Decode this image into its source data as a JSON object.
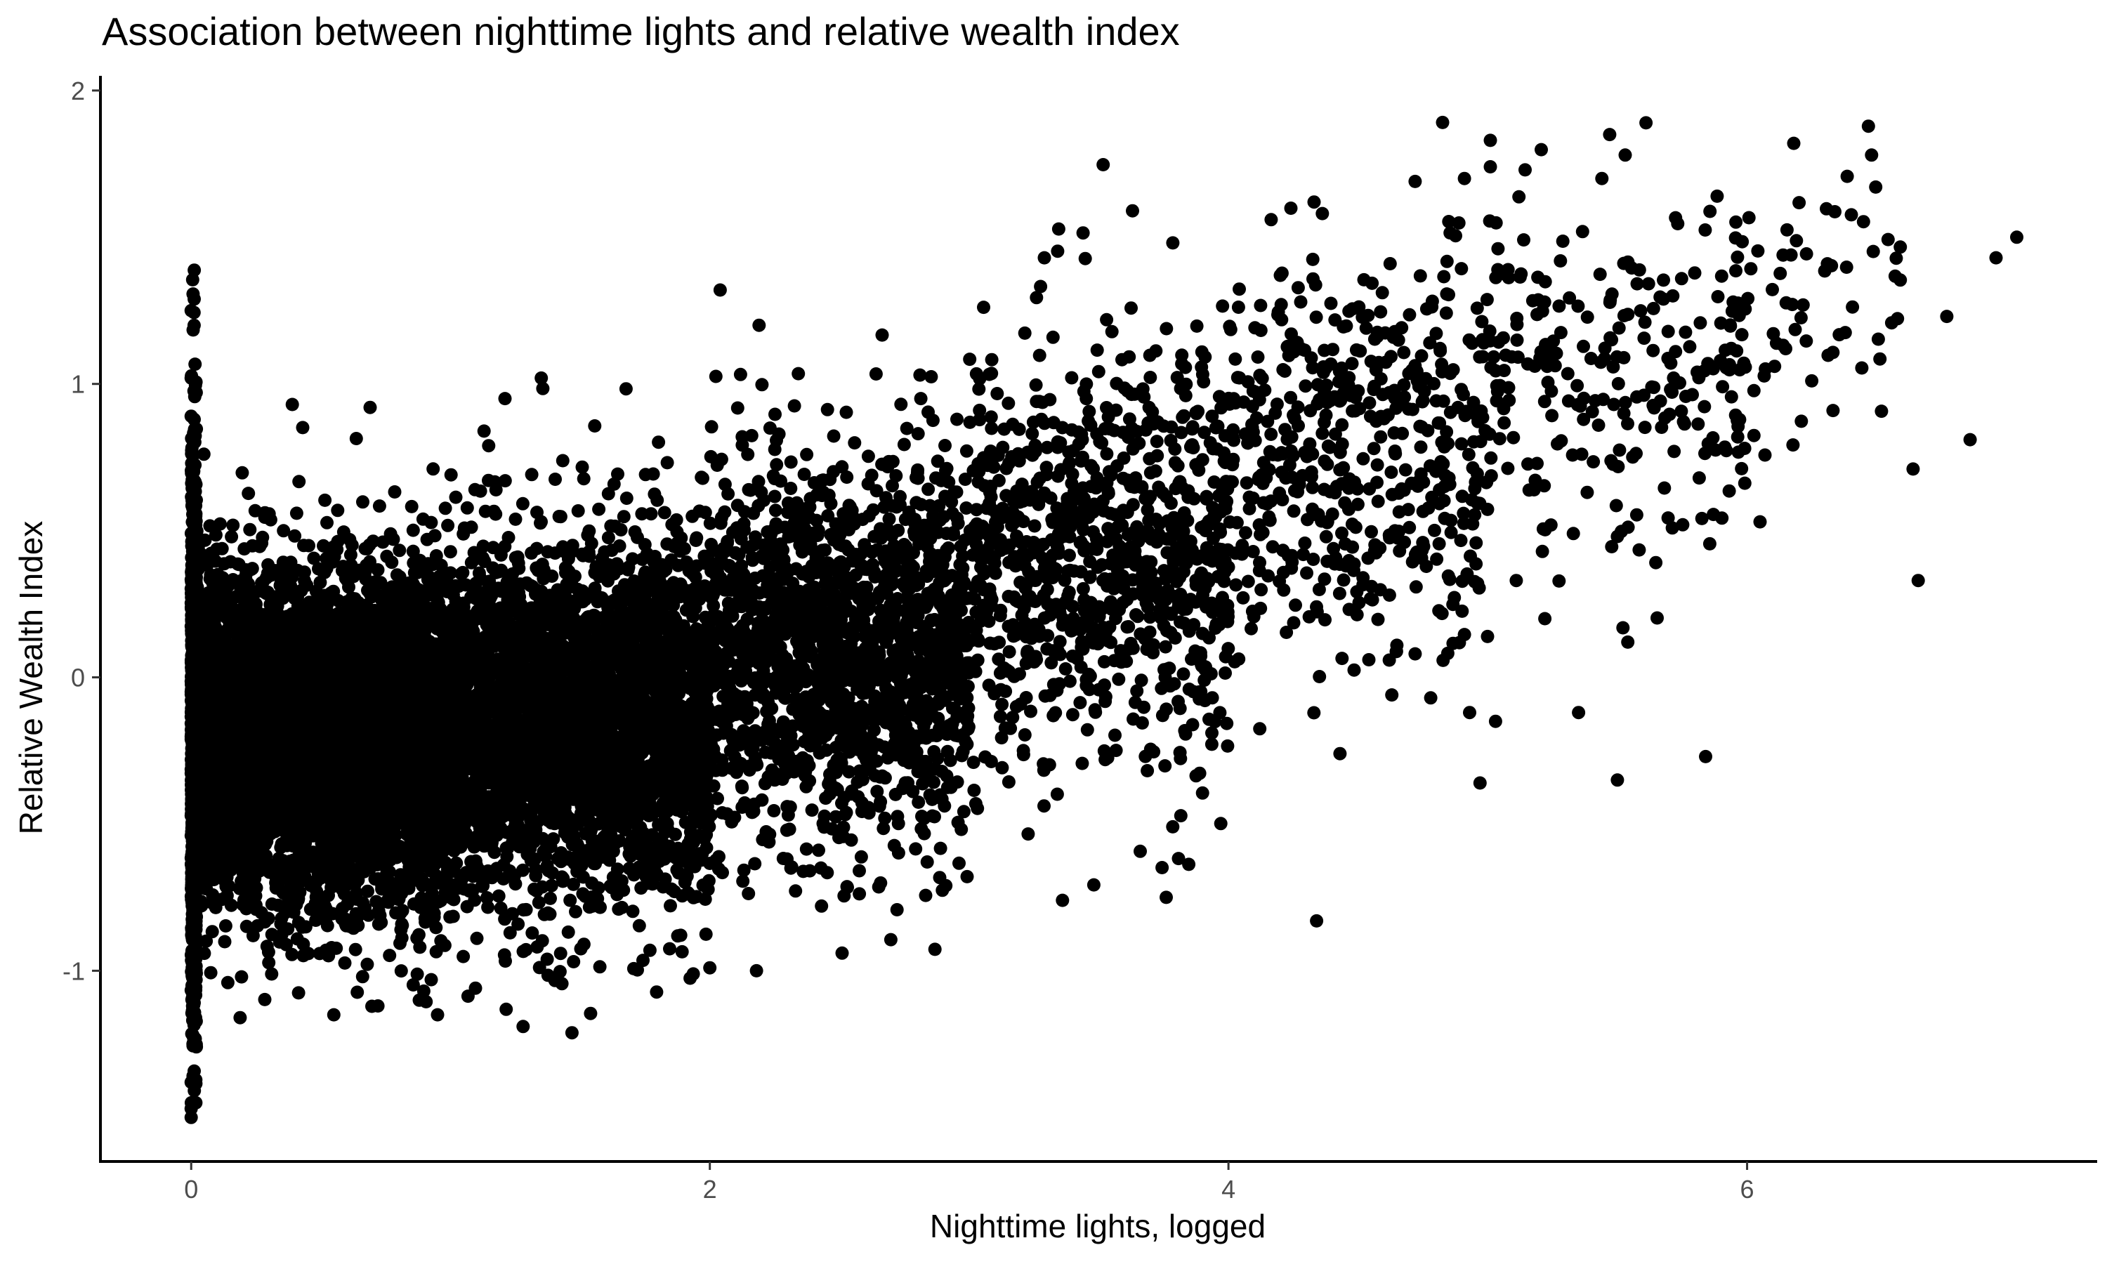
{
  "chart_data": {
    "type": "scatter",
    "title": "Association between nighttime lights and relative wealth index",
    "xlabel": "Nighttime lights, logged",
    "ylabel": "Relative Wealth Index",
    "xlim": [
      -0.35,
      7.35
    ],
    "ylim": [
      -1.65,
      2.05
    ],
    "x_ticks": [
      0,
      2,
      4,
      6
    ],
    "x_tick_labels": [
      "0",
      "2",
      "4",
      "6"
    ],
    "y_ticks": [
      -1,
      0,
      1,
      2
    ],
    "y_tick_labels": [
      "-1",
      "0",
      "1",
      "2"
    ],
    "grid": false,
    "legend": "none",
    "point_color": "#000000",
    "highlighted_points": [
      {
        "x": 0.0,
        "y": 1.25
      },
      {
        "x": 0.0,
        "y": 1.02
      },
      {
        "x": 0.0,
        "y": -1.5
      },
      {
        "x": 0.0,
        "y": -1.47
      },
      {
        "x": 0.0,
        "y": -1.38
      },
      {
        "x": 0.0,
        "y": 0.89
      },
      {
        "x": 0.39,
        "y": 0.93
      },
      {
        "x": 0.69,
        "y": 0.92
      },
      {
        "x": 1.35,
        "y": 1.02
      },
      {
        "x": 1.21,
        "y": 0.95
      },
      {
        "x": 1.28,
        "y": -1.19
      },
      {
        "x": 0.95,
        "y": -1.15
      },
      {
        "x": 0.55,
        "y": -1.15
      },
      {
        "x": 0.72,
        "y": -1.12
      },
      {
        "x": 2.04,
        "y": 1.32
      },
      {
        "x": 2.19,
        "y": 1.2
      },
      {
        "x": 2.0,
        "y": -0.99
      },
      {
        "x": 2.18,
        "y": -1.0
      },
      {
        "x": 2.51,
        "y": -0.94
      },
      {
        "x": 2.91,
        "y": -0.71
      },
      {
        "x": 3.29,
        "y": 1.43
      },
      {
        "x": 3.63,
        "y": 1.59
      },
      {
        "x": 3.36,
        "y": -0.76
      },
      {
        "x": 3.76,
        "y": -0.75
      },
      {
        "x": 4.33,
        "y": 1.62
      },
      {
        "x": 4.2,
        "y": 1.37
      },
      {
        "x": 4.34,
        "y": -0.83
      },
      {
        "x": 4.43,
        "y": -0.26
      },
      {
        "x": 4.72,
        "y": 1.69
      },
      {
        "x": 4.91,
        "y": 1.7
      },
      {
        "x": 5.01,
        "y": 1.83
      },
      {
        "x": 5.01,
        "y": 1.74
      },
      {
        "x": 5.47,
        "y": 1.85
      },
      {
        "x": 5.61,
        "y": 1.89
      },
      {
        "x": 5.53,
        "y": 1.78
      },
      {
        "x": 6.18,
        "y": 1.82
      },
      {
        "x": 6.48,
        "y": 1.78
      },
      {
        "x": 5.44,
        "y": 1.7
      },
      {
        "x": 6.96,
        "y": 1.43
      },
      {
        "x": 7.04,
        "y": 1.5
      },
      {
        "x": 6.77,
        "y": 1.23
      },
      {
        "x": 6.86,
        "y": 0.81
      },
      {
        "x": 6.64,
        "y": 0.71
      },
      {
        "x": 6.66,
        "y": 0.33
      },
      {
        "x": 6.05,
        "y": 0.53
      },
      {
        "x": 5.54,
        "y": 0.12
      },
      {
        "x": 5.84,
        "y": -0.27
      },
      {
        "x": 5.5,
        "y": -0.35
      },
      {
        "x": 5.35,
        "y": -0.12
      },
      {
        "x": 4.97,
        "y": -0.36
      },
      {
        "x": 5.03,
        "y": -0.15
      },
      {
        "x": 4.93,
        "y": -0.12
      },
      {
        "x": 4.78,
        "y": -0.07
      },
      {
        "x": 4.63,
        "y": -0.06
      },
      {
        "x": 5.22,
        "y": 0.2
      },
      {
        "x": 5.11,
        "y": 0.33
      },
      {
        "x": 5.33,
        "y": 0.49
      },
      {
        "x": 5.5,
        "y": 0.48
      },
      {
        "x": 4.72,
        "y": 0.08
      }
    ],
    "cloud_regions": [
      {
        "x_range": [
          0.0,
          0.02
        ],
        "y_mean": -0.2,
        "y_spread": 0.5,
        "n": 900
      },
      {
        "x_range": [
          0.0,
          1.0
        ],
        "y_mean": -0.2,
        "y_spread": 0.28,
        "n": 5000
      },
      {
        "x_range": [
          1.0,
          2.0
        ],
        "y_mean": -0.15,
        "y_spread": 0.3,
        "n": 3000
      },
      {
        "x_range": [
          2.0,
          3.0
        ],
        "y_mean": 0.1,
        "y_spread": 0.33,
        "n": 1600
      },
      {
        "x_range": [
          3.0,
          4.0
        ],
        "y_mean": 0.4,
        "y_spread": 0.35,
        "n": 900
      },
      {
        "x_range": [
          4.0,
          5.0
        ],
        "y_mean": 0.75,
        "y_spread": 0.35,
        "n": 500
      },
      {
        "x_range": [
          5.0,
          6.0
        ],
        "y_mean": 1.05,
        "y_spread": 0.3,
        "n": 250
      },
      {
        "x_range": [
          6.0,
          6.6
        ],
        "y_mean": 1.25,
        "y_spread": 0.25,
        "n": 60
      }
    ]
  }
}
